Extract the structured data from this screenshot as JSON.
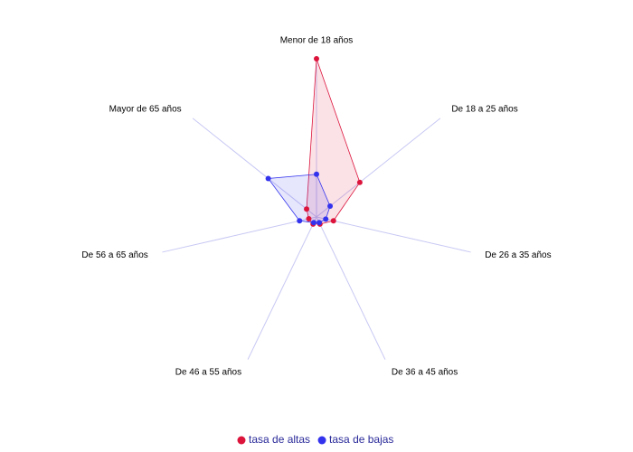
{
  "chart_data": {
    "type": "radar",
    "categories": [
      "Menor de 18 años",
      "De 18 a 25 años",
      "De 26 a 35 años",
      "De 36 a 45 años",
      "De 46 a 55 años",
      "De 56 a 65 años",
      "Mayor de 65 años"
    ],
    "rlim": [
      0,
      100
    ],
    "series": [
      {
        "name": "tasa de altas",
        "color": "#dc143c",
        "values": [
          100,
          35,
          11,
          5,
          5,
          5,
          8
        ]
      },
      {
        "name": "tasa de bajas",
        "color": "#3333ee",
        "values": [
          27,
          11,
          6,
          4,
          4,
          11,
          39
        ]
      }
    ],
    "legend": "bottom"
  }
}
